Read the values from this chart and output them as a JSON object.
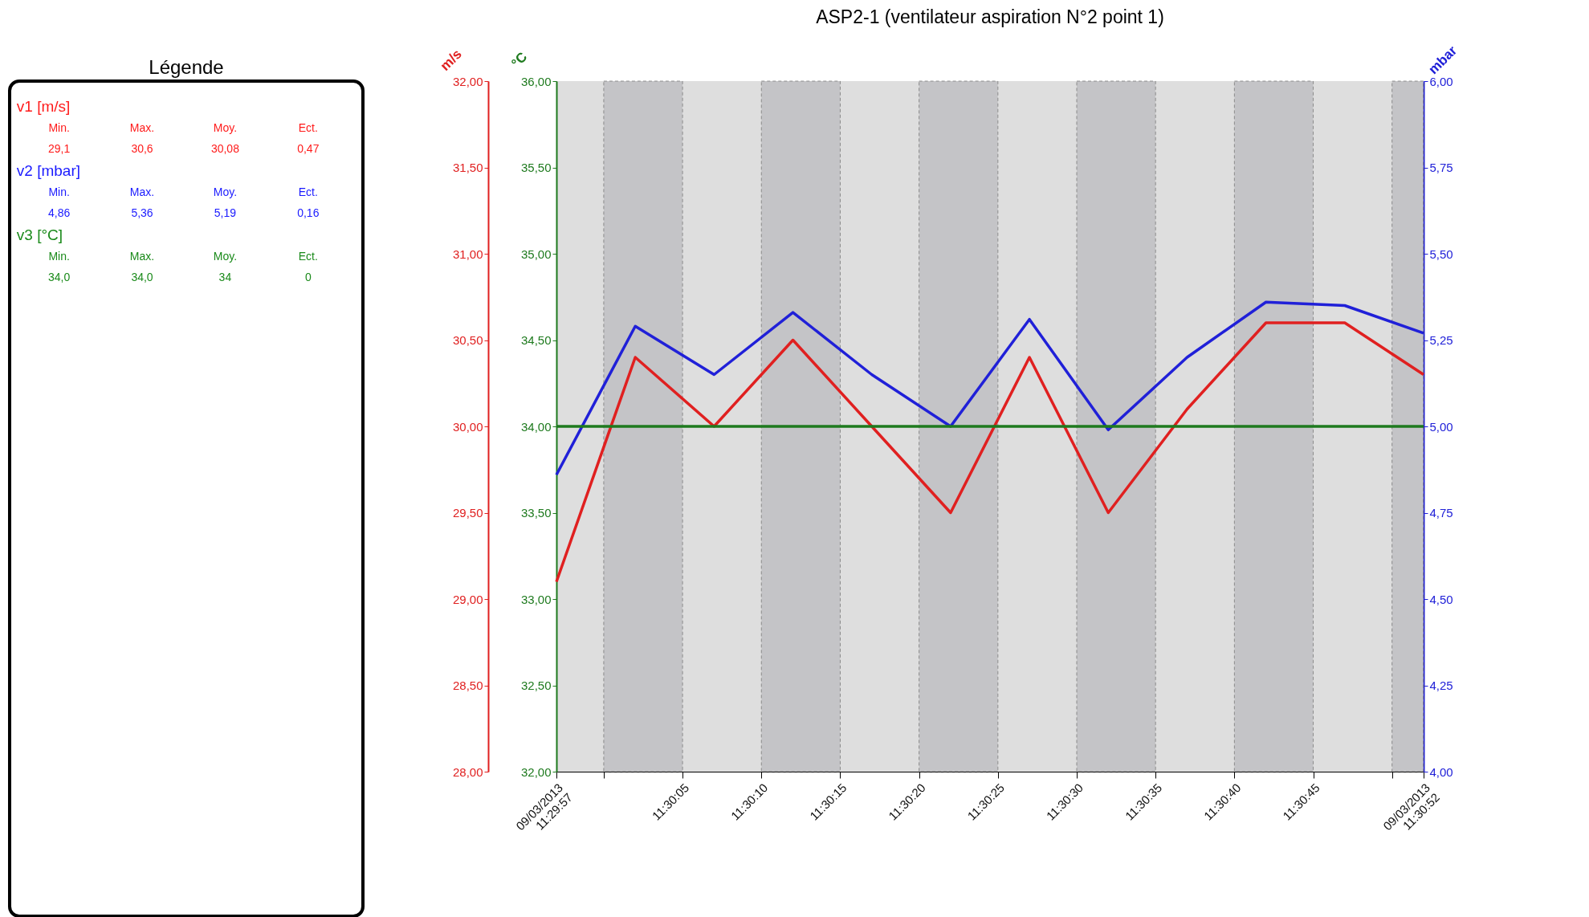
{
  "chart_data": [
    {
      "type": "other",
      "title": "Légende",
      "categories": [
        "Min.",
        "Max.",
        "Moy.",
        "Ect."
      ],
      "series": [
        {
          "name": "v1  [m/s]",
          "color": "#ff1a1a",
          "values": [
            29.1,
            30.6,
            30.08,
            0.47
          ],
          "value_labels": [
            "29,1",
            "30,6",
            "30,08",
            "0,47"
          ]
        },
        {
          "name": "v2  [mbar]",
          "color": "#1a1aff",
          "values": [
            4.86,
            5.36,
            5.19,
            0.16
          ],
          "value_labels": [
            "4,86",
            "5,36",
            "5,19",
            "0,16"
          ]
        },
        {
          "name": "v3  [°C]",
          "color": "#1a8a1a",
          "values": [
            34.0,
            34.0,
            34,
            0
          ],
          "value_labels": [
            "34,0",
            "34,0",
            "34",
            "0"
          ]
        }
      ]
    },
    {
      "type": "line",
      "title": "ASP2-1 (ventilateur aspiration N°2 point 1)",
      "x": [
        "2013-03-09T11:29:57",
        "2013-03-09T11:30:02",
        "2013-03-09T11:30:07",
        "2013-03-09T11:30:12",
        "2013-03-09T11:30:17",
        "2013-03-09T11:30:22",
        "2013-03-09T11:30:27",
        "2013-03-09T11:30:32",
        "2013-03-09T11:30:37",
        "2013-03-09T11:30:42",
        "2013-03-09T11:30:47",
        "2013-03-09T11:30:52"
      ],
      "xlim": [
        "2013-03-09T11:29:57",
        "2013-03-09T11:30:52"
      ],
      "xticks": [
        {
          "value": "2013-03-09T11:29:57",
          "label": "09/03/2013\n11:29:57"
        },
        {
          "value": "2013-03-09T11:30:00",
          "label": null
        },
        {
          "value": "2013-03-09T11:30:05",
          "label": "11:30:05"
        },
        {
          "value": "2013-03-09T11:30:10",
          "label": "11:30:10"
        },
        {
          "value": "2013-03-09T11:30:15",
          "label": "11:30:15"
        },
        {
          "value": "2013-03-09T11:30:20",
          "label": "11:30:20"
        },
        {
          "value": "2013-03-09T11:30:25",
          "label": "11:30:25"
        },
        {
          "value": "2013-03-09T11:30:30",
          "label": "11:30:30"
        },
        {
          "value": "2013-03-09T11:30:35",
          "label": "11:30:35"
        },
        {
          "value": "2013-03-09T11:30:40",
          "label": "11:30:40"
        },
        {
          "value": "2013-03-09T11:30:45",
          "label": "11:30:45"
        },
        {
          "value": "2013-03-09T11:30:50",
          "label": null
        },
        {
          "value": "2013-03-09T11:30:52",
          "label": "09/03/2013\n11:30:52"
        }
      ],
      "ylabel": "m/s",
      "ylim": [
        28,
        32
      ],
      "yticks": [
        {
          "value": 28,
          "label": "28,00"
        },
        {
          "value": 28.5,
          "label": "28,50"
        },
        {
          "value": 29,
          "label": "29,00"
        },
        {
          "value": 29.5,
          "label": "29,50"
        },
        {
          "value": 30,
          "label": "30,00"
        },
        {
          "value": 30.5,
          "label": "30,50"
        },
        {
          "value": 31,
          "label": "31,00"
        },
        {
          "value": 31.5,
          "label": "31,50"
        },
        {
          "value": 32,
          "label": "32,00"
        }
      ],
      "y3label": "°C",
      "y3lim": [
        32,
        36
      ],
      "y3ticks": [
        {
          "value": 32,
          "label": "32,00"
        },
        {
          "value": 32.5,
          "label": "32,50"
        },
        {
          "value": 33,
          "label": "33,00"
        },
        {
          "value": 33.5,
          "label": "33,50"
        },
        {
          "value": 34,
          "label": "34,00"
        },
        {
          "value": 34.5,
          "label": "34,50"
        },
        {
          "value": 35,
          "label": "35,00"
        },
        {
          "value": 35.5,
          "label": "35,50"
        },
        {
          "value": 36,
          "label": "36,00"
        }
      ],
      "y2label": "mbar",
      "y2lim": [
        4,
        6
      ],
      "y2ticks": [
        {
          "value": 4,
          "label": "4,00"
        },
        {
          "value": 4.25,
          "label": "4,25"
        },
        {
          "value": 4.5,
          "label": "4,50"
        },
        {
          "value": 4.75,
          "label": "4,75"
        },
        {
          "value": 5,
          "label": "5,00"
        },
        {
          "value": 5.25,
          "label": "5,25"
        },
        {
          "value": 5.5,
          "label": "5,50"
        },
        {
          "value": 5.75,
          "label": "5,75"
        },
        {
          "value": 6,
          "label": "6,00"
        }
      ],
      "series": [
        {
          "color": "#e02020",
          "values": [
            29.1,
            30.4,
            30.0,
            30.5,
            30.0,
            29.5,
            30.4,
            29.5,
            30.1,
            30.6,
            30.6,
            30.3
          ]
        },
        {
          "color": "#2020d8",
          "axis": "y2",
          "values": [
            4.86,
            5.29,
            5.15,
            5.33,
            5.15,
            5.0,
            5.31,
            4.99,
            5.2,
            5.36,
            5.35,
            5.27
          ]
        },
        {
          "color": "#1e7a1e",
          "axis": "y3",
          "values": [
            34.0,
            34.0,
            34.0,
            34.0,
            34.0,
            34.0,
            34.0,
            34.0,
            34.0,
            34.0,
            34.0,
            34.0
          ]
        }
      ],
      "bands": [
        {
          "axis": "x",
          "from": "2013-03-09T11:30:00",
          "to": "2013-03-09T11:30:05",
          "color": "#b4b4b8"
        },
        {
          "axis": "x",
          "from": "2013-03-09T11:30:10",
          "to": "2013-03-09T11:30:15",
          "color": "#b4b4b8"
        },
        {
          "axis": "x",
          "from": "2013-03-09T11:30:20",
          "to": "2013-03-09T11:30:25",
          "color": "#b4b4b8"
        },
        {
          "axis": "x",
          "from": "2013-03-09T11:30:30",
          "to": "2013-03-09T11:30:35",
          "color": "#b4b4b8"
        },
        {
          "axis": "x",
          "from": "2013-03-09T11:30:40",
          "to": "2013-03-09T11:30:45",
          "color": "#b4b4b8"
        },
        {
          "axis": "x",
          "from": "2013-03-09T11:30:50",
          "to": "2013-03-09T11:30:52",
          "color": "#b4b4b8"
        }
      ],
      "grid": false,
      "marker": "none",
      "line_style": "solid"
    }
  ]
}
